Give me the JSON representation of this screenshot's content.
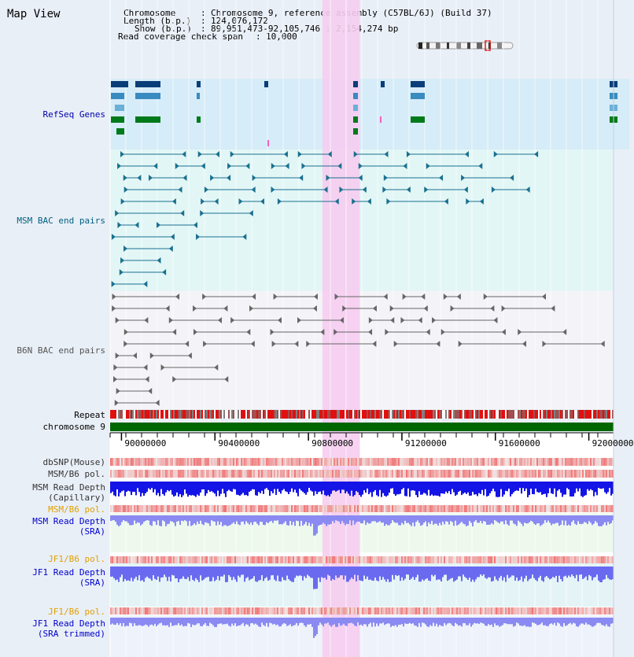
{
  "title": "Map View",
  "info": {
    "chromosome_key": "Chromosome",
    "chromosome_val": "Chromosome 9, reference assembly (C57BL/6J) (Build 37)",
    "length_key": "Length (b.p.)",
    "length_val": "124,076,172",
    "show_key": "Show (b.p.)",
    "show_val": "89,951,473-92,105,746 : 2,154,274 bp",
    "coverage_key": "Read coverage check span",
    "coverage_val": "10,000"
  },
  "tracks": {
    "refseq": "RefSeq Genes",
    "msm_bac": "MSM BAC end pairs",
    "b6n_bac": "B6N BAC end pairs",
    "repeat": "Repeat",
    "chromosome": "chromosome 9",
    "dbsnp": "dbSNP(Mouse)",
    "msm_b6_pol": "MSM/B6 pol.",
    "msm_depth_cap_1": "MSM Read Depth",
    "msm_depth_cap_2": "(Capillary)",
    "msm_b6_pol_2": "MSM/B6 pol.",
    "msm_depth_sra_1": "MSM Read Depth",
    "msm_depth_sra_2": "(SRA)",
    "jf1_b6_pol": "JF1/B6 pol.",
    "jf1_depth_1": "JF1 Read Depth",
    "jf1_depth_2": "(SRA)",
    "jf1_b6_pol_2": "JF1/B6 pol.",
    "jf1_trim_1": "JF1 Read Depth",
    "jf1_trim_2": "(SRA trimmed)"
  },
  "axis": {
    "ticks": [
      {
        "label": "90000000",
        "pos": 90000000
      },
      {
        "label": "90400000",
        "pos": 90400000
      },
      {
        "label": "90800000",
        "pos": 90800000
      },
      {
        "label": "91200000",
        "pos": 91200000
      },
      {
        "label": "91600000",
        "pos": 91600000
      },
      {
        "label": "92000000",
        "pos": 92000000
      }
    ],
    "start": 89951473,
    "end": 92105746
  },
  "highlight": {
    "start": 90860000,
    "end": 91020000
  },
  "colors": {
    "refseq_bg": "#d6ecf8",
    "bac_bg": "#e2f6f6",
    "highlight": "#f6cdf0",
    "chromosome": "#006600",
    "depth_dark": "#1414e6",
    "depth_light": "#8a8af2",
    "snp_red": "#e23b3b"
  }
}
